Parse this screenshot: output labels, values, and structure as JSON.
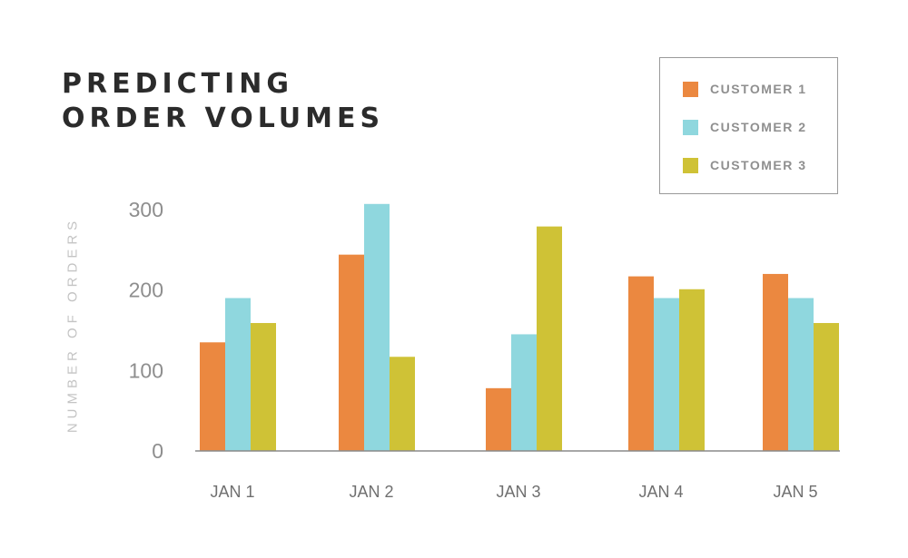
{
  "title_lines": [
    "PREDICTING",
    "ORDER VOLUMES"
  ],
  "legend": [
    {
      "label": "CUSTOMER 1",
      "color": "#eb8840"
    },
    {
      "label": "CUSTOMER 2",
      "color": "#8fd7de"
    },
    {
      "label": "CUSTOMER 3",
      "color": "#cfc236"
    }
  ],
  "chart_data": {
    "type": "bar",
    "title": "PREDICTING ORDER VOLUMES",
    "xlabel": "",
    "ylabel": "NUMBER OF ORDERS",
    "categories": [
      "JAN 1",
      "JAN 2",
      "JAN 3",
      "JAN 4",
      "JAN 5"
    ],
    "series": [
      {
        "name": "CUSTOMER 1",
        "color": "#eb8840",
        "values": [
          135,
          244,
          78,
          217,
          220
        ]
      },
      {
        "name": "CUSTOMER 2",
        "color": "#8fd7de",
        "values": [
          190,
          307,
          145,
          190,
          190
        ]
      },
      {
        "name": "CUSTOMER 3",
        "color": "#cfc236",
        "values": [
          159,
          117,
          279,
          201,
          159
        ]
      }
    ],
    "yticks": [
      0,
      100,
      200,
      300
    ],
    "ylim": [
      0,
      300
    ],
    "grid": false,
    "legend_position": "top-right"
  }
}
